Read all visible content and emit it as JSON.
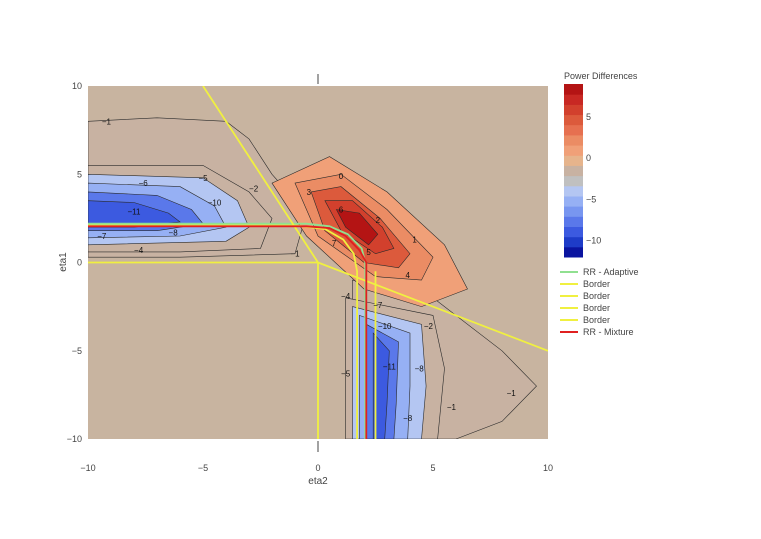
{
  "chart_data": {
    "type": "contour",
    "title": "",
    "xlabel": "eta2",
    "ylabel": "eta1",
    "xlim": [
      -10,
      10
    ],
    "ylim": [
      -10,
      10
    ],
    "xticks": [
      -10,
      -5,
      0,
      5,
      10
    ],
    "yticks": [
      -10,
      -5,
      0,
      5,
      10
    ],
    "xtick_labels": [
      "−10",
      "−5",
      "0",
      "5",
      "10"
    ],
    "ytick_labels": [
      "−10",
      "−5",
      "0",
      "5",
      "10"
    ],
    "grid": false,
    "colorbar": {
      "title": "Power Differences",
      "range": [
        -12,
        9
      ],
      "ticks": [
        5,
        0,
        -5,
        -10
      ],
      "tick_labels": [
        "5",
        "0",
        "−5",
        "−10"
      ],
      "colors": [
        "#0a14a0",
        "#1e3cc8",
        "#3c5ae0",
        "#5a78ea",
        "#7896f0",
        "#96b0f4",
        "#b4c6f2",
        "#c0c0c0",
        "#c8b2a2",
        "#e6b48c",
        "#f0a078",
        "#eb8c64",
        "#e67050",
        "#dc5a3c",
        "#d2402d",
        "#c82823",
        "#b41414"
      ]
    },
    "background_value": 0,
    "background_color": "#c8b4a0",
    "regions": [
      {
        "name": "upper-left band",
        "rings": [
          {
            "level": -1,
            "points": [
              [
                -10,
                8
              ],
              [
                -7,
                8.2
              ],
              [
                -4,
                8
              ],
              [
                -3,
                7
              ],
              [
                -2,
                5
              ],
              [
                -0.5,
                2.8
              ],
              [
                -1,
                0.5
              ],
              [
                -6,
                0.3
              ],
              [
                -10,
                0.3
              ]
            ]
          },
          {
            "level": -2,
            "points": [
              [
                -10,
                5.5
              ],
              [
                -5,
                5.5
              ],
              [
                -3,
                4
              ],
              [
                -2,
                2.5
              ],
              [
                -2.5,
                0.8
              ],
              [
                -6,
                0.6
              ],
              [
                -10,
                0.6
              ]
            ]
          },
          {
            "level": -4,
            "points": [
              [
                -10,
                5
              ],
              [
                -5,
                4.8
              ],
              [
                -3.5,
                3.5
              ],
              [
                -3,
                2
              ],
              [
                -4,
                1.2
              ],
              [
                -10,
                1
              ]
            ]
          },
          {
            "level": -6,
            "points": [
              [
                -10,
                4.5
              ],
              [
                -6,
                4.3
              ],
              [
                -4.5,
                3.2
              ],
              [
                -4,
                2
              ],
              [
                -6,
                1.5
              ],
              [
                -10,
                1.4
              ]
            ]
          },
          {
            "level": -8,
            "points": [
              [
                -10,
                4
              ],
              [
                -7,
                3.8
              ],
              [
                -5.5,
                3
              ],
              [
                -5,
                2.2
              ],
              [
                -7,
                1.8
              ],
              [
                -10,
                1.8
              ]
            ]
          },
          {
            "level": -10,
            "points": [
              [
                -10,
                3.5
              ],
              [
                -8,
                3.4
              ],
              [
                -6.5,
                2.8
              ],
              [
                -6,
                2.3
              ],
              [
                -8,
                2
              ],
              [
                -10,
                2
              ]
            ]
          }
        ]
      },
      {
        "name": "lower-right band",
        "rings": [
          {
            "level": -1,
            "points": [
              [
                1.5,
                -1
              ],
              [
                5,
                -2
              ],
              [
                8,
                -5
              ],
              [
                9.5,
                -7
              ],
              [
                8,
                -9
              ],
              [
                6,
                -10
              ],
              [
                1.5,
                -10
              ]
            ]
          },
          {
            "level": -2,
            "points": [
              [
                1.2,
                -2
              ],
              [
                5,
                -3
              ],
              [
                5.5,
                -6
              ],
              [
                5.2,
                -10
              ],
              [
                1.2,
                -10
              ]
            ]
          },
          {
            "level": -4,
            "points": [
              [
                1.5,
                -2.5
              ],
              [
                4.5,
                -3.5
              ],
              [
                4.7,
                -7
              ],
              [
                4.5,
                -10
              ],
              [
                1.5,
                -10
              ]
            ]
          },
          {
            "level": -6,
            "points": [
              [
                1.8,
                -3
              ],
              [
                4,
                -4
              ],
              [
                4,
                -7
              ],
              [
                3.9,
                -10
              ],
              [
                1.8,
                -10
              ]
            ]
          },
          {
            "level": -8,
            "points": [
              [
                2.1,
                -3.5
              ],
              [
                3.5,
                -4.5
              ],
              [
                3.4,
                -8
              ],
              [
                3.3,
                -10
              ],
              [
                2.1,
                -10
              ]
            ]
          },
          {
            "level": -10,
            "points": [
              [
                2.4,
                -4
              ],
              [
                3.1,
                -5
              ],
              [
                3,
                -8
              ],
              [
                2.9,
                -10
              ],
              [
                2.4,
                -10
              ]
            ]
          }
        ]
      },
      {
        "name": "positive diagonal blob",
        "rings": [
          {
            "level": 1,
            "points": [
              [
                -2,
                4.5
              ],
              [
                0.5,
                6
              ],
              [
                3,
                4
              ],
              [
                5.5,
                1
              ],
              [
                6.5,
                -1.5
              ],
              [
                4.5,
                -2.5
              ],
              [
                2,
                -1.5
              ],
              [
                -0.5,
                1.5
              ]
            ]
          },
          {
            "level": 3,
            "points": [
              [
                -1,
                4.5
              ],
              [
                1,
                5
              ],
              [
                3,
                3
              ],
              [
                5,
                0.3
              ],
              [
                4.5,
                -1
              ],
              [
                2.5,
                -0.8
              ],
              [
                0,
                1.5
              ]
            ]
          },
          {
            "level": 5,
            "points": [
              [
                -0.3,
                4
              ],
              [
                1,
                4.3
              ],
              [
                2.7,
                2.5
              ],
              [
                4,
                0.5
              ],
              [
                3.5,
                -0.3
              ],
              [
                2,
                0
              ],
              [
                0.3,
                1.8
              ]
            ]
          },
          {
            "level": 7,
            "points": [
              [
                0.3,
                3.5
              ],
              [
                1.5,
                3.5
              ],
              [
                2.8,
                2
              ],
              [
                3.3,
                0.8
              ],
              [
                2.5,
                0.5
              ],
              [
                1,
                1.8
              ]
            ]
          },
          {
            "level": 8.5,
            "points": [
              [
                0.8,
                3
              ],
              [
                1.8,
                2.8
              ],
              [
                2.6,
                1.6
              ],
              [
                2.2,
                1
              ],
              [
                1.2,
                2
              ]
            ]
          }
        ]
      }
    ],
    "contour_labels": [
      {
        "text": "−1",
        "x": -9.2,
        "y": 8
      },
      {
        "text": "−6",
        "x": -7.6,
        "y": 4.5
      },
      {
        "text": "−5",
        "x": -5,
        "y": 4.8
      },
      {
        "text": "−2",
        "x": -2.8,
        "y": 4.2
      },
      {
        "text": "−10",
        "x": -4.5,
        "y": 3.4
      },
      {
        "text": "−11",
        "x": -8,
        "y": 2.9
      },
      {
        "text": "−8",
        "x": -6.3,
        "y": 1.7
      },
      {
        "text": "−7",
        "x": -9.4,
        "y": 1.5
      },
      {
        "text": "−4",
        "x": -7.8,
        "y": 0.7
      },
      {
        "text": "−1",
        "x": -1,
        "y": 0.5
      },
      {
        "text": "0",
        "x": 1,
        "y": 4.9
      },
      {
        "text": "3",
        "x": -0.4,
        "y": 4
      },
      {
        "text": "6",
        "x": 1,
        "y": 3
      },
      {
        "text": "2",
        "x": 2.6,
        "y": 2.4
      },
      {
        "text": "1",
        "x": 4.2,
        "y": 1.3
      },
      {
        "text": "7",
        "x": 0.7,
        "y": 1.1
      },
      {
        "text": "5",
        "x": 2.2,
        "y": 0.6
      },
      {
        "text": "4",
        "x": 3.9,
        "y": -0.7
      },
      {
        "text": "−4",
        "x": 1.2,
        "y": -1.9
      },
      {
        "text": "−7",
        "x": 2.6,
        "y": -2.4
      },
      {
        "text": "−10",
        "x": 2.9,
        "y": -3.6
      },
      {
        "text": "−2",
        "x": 4.8,
        "y": -3.6
      },
      {
        "text": "−5",
        "x": 1.2,
        "y": -6.3
      },
      {
        "text": "−11",
        "x": 3.1,
        "y": -5.9
      },
      {
        "text": "−8",
        "x": 4.4,
        "y": -6
      },
      {
        "text": "−8",
        "x": 3.9,
        "y": -8.8
      },
      {
        "text": "−1",
        "x": 5.8,
        "y": -8.2
      },
      {
        "text": "−1",
        "x": 8.4,
        "y": -7.4
      }
    ],
    "series": [
      {
        "name": "RR - Adaptive",
        "color": "#90e090",
        "points": [
          [
            -10,
            2.2
          ],
          [
            -0.5,
            2.2
          ],
          [
            0.5,
            2.05
          ],
          [
            1.3,
            1.6
          ],
          [
            1.9,
            0.8
          ],
          [
            2.05,
            0
          ],
          [
            2.05,
            -10
          ]
        ]
      },
      {
        "name": "Border",
        "color": "#f0f040",
        "points": [
          [
            -10,
            0
          ],
          [
            0,
            0
          ]
        ]
      },
      {
        "name": "Border",
        "color": "#f0f040",
        "points": [
          [
            0,
            0
          ],
          [
            0,
            -10
          ]
        ]
      },
      {
        "name": "Border",
        "color": "#f0f040",
        "points": [
          [
            -5,
            10
          ],
          [
            0,
            0
          ]
        ]
      },
      {
        "name": "Border",
        "color": "#f0f040",
        "points": [
          [
            0,
            0
          ],
          [
            10,
            -5
          ]
        ]
      },
      {
        "name": "RR - Mixture",
        "color": "#e02020",
        "points": [
          [
            -10,
            2.05
          ],
          [
            -0.5,
            2.05
          ],
          [
            0.5,
            1.95
          ],
          [
            1.2,
            1.5
          ],
          [
            1.8,
            0.7
          ],
          [
            2.1,
            0
          ],
          [
            2.1,
            -10
          ]
        ]
      }
    ],
    "extra_lines": [
      {
        "color": "#f0f040",
        "points": [
          [
            -10,
            2.1
          ],
          [
            -1,
            2.1
          ],
          [
            0.3,
            1.9
          ],
          [
            1.1,
            1.3
          ],
          [
            1.55,
            0.5
          ],
          [
            1.7,
            -0.5
          ],
          [
            1.7,
            -10
          ]
        ]
      },
      {
        "color": "#f0f040",
        "points": [
          [
            2.5,
            -10
          ],
          [
            2.5,
            -0.5
          ]
        ]
      }
    ]
  }
}
